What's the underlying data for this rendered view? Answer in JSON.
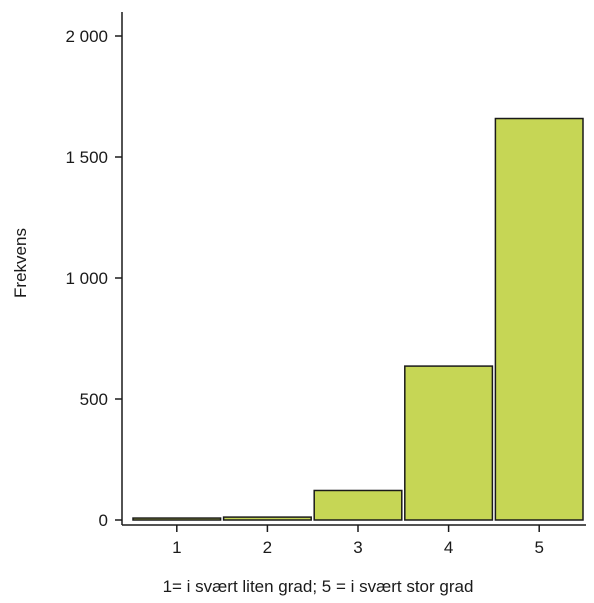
{
  "chart_data": {
    "type": "bar",
    "categories": [
      "1",
      "2",
      "3",
      "4",
      "5"
    ],
    "values": [
      8,
      12,
      122,
      636,
      1659
    ],
    "title": "",
    "xlabel": "1= i svært liten grad; 5 = i svært stor grad",
    "ylabel": "Frekvens",
    "ylim": [
      0,
      2000
    ],
    "yticks": [
      {
        "value": 0,
        "label": "0"
      },
      {
        "value": 500,
        "label": "500"
      },
      {
        "value": 1000,
        "label": "1 000"
      },
      {
        "value": 1500,
        "label": "1 500"
      },
      {
        "value": 2000,
        "label": "2 000"
      }
    ],
    "grid": false,
    "legend": "none",
    "colors": {
      "bar_fill": "#c6d655",
      "bar_stroke": "#1a1a1a",
      "axis": "#1a1a1a"
    }
  }
}
